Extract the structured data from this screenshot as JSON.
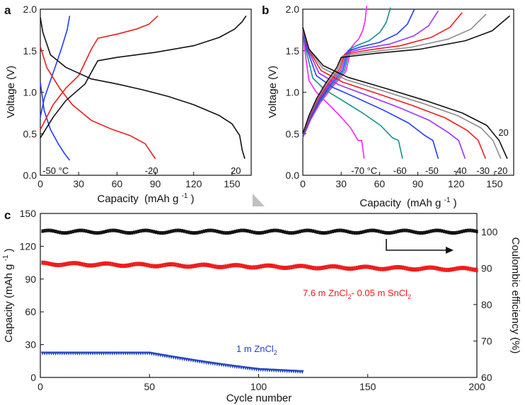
{
  "colors": {
    "axis": "#111111",
    "arrow": "#c0c0c0"
  },
  "chart_data": [
    {
      "panel": "a",
      "type": "line",
      "xlabel": "Capacity",
      "xlabel_unit": "(mAh g",
      "xlabel_sup": "-1",
      "xlabel_close": ")",
      "ylabel": "Voltage (V)",
      "xlim": [
        0,
        165
      ],
      "ylim": [
        0,
        2.0
      ],
      "xticks": [
        "0",
        "30",
        "60",
        "90",
        "120",
        "150"
      ],
      "yticks": [
        "0.0",
        "0.5",
        "1.0",
        "1.5",
        "2.0"
      ],
      "curves": [
        {
          "name": "-50 °C charge",
          "color": "#1e3cff",
          "points": [
            [
              0,
              0.7
            ],
            [
              3,
              0.92
            ],
            [
              7,
              1.1
            ],
            [
              12,
              1.32
            ],
            [
              17,
              1.55
            ],
            [
              21,
              1.75
            ],
            [
              23,
              1.92
            ]
          ]
        },
        {
          "name": "-50 °C discharge",
          "color": "#1e3cff",
          "points": [
            [
              0,
              1.12
            ],
            [
              3,
              0.78
            ],
            [
              8,
              0.55
            ],
            [
              14,
              0.38
            ],
            [
              19,
              0.26
            ],
            [
              23,
              0.18
            ]
          ]
        },
        {
          "name": "-20 charge",
          "color": "#ee1c1c",
          "points": [
            [
              0,
              0.55
            ],
            [
              10,
              0.85
            ],
            [
              20,
              1.05
            ],
            [
              30,
              1.2
            ],
            [
              40,
              1.52
            ],
            [
              45,
              1.65
            ],
            [
              60,
              1.7
            ],
            [
              75,
              1.76
            ],
            [
              85,
              1.82
            ],
            [
              92,
              1.92
            ]
          ]
        },
        {
          "name": "-20 discharge",
          "color": "#ee1c1c",
          "points": [
            [
              0,
              1.55
            ],
            [
              5,
              1.3
            ],
            [
              15,
              1.05
            ],
            [
              25,
              0.85
            ],
            [
              40,
              0.66
            ],
            [
              55,
              0.56
            ],
            [
              70,
              0.48
            ],
            [
              82,
              0.38
            ],
            [
              90,
              0.2
            ]
          ]
        },
        {
          "name": "20 charge",
          "color": "#111111",
          "points": [
            [
              0,
              0.45
            ],
            [
              10,
              0.7
            ],
            [
              20,
              0.9
            ],
            [
              35,
              1.1
            ],
            [
              42,
              1.3
            ],
            [
              45,
              1.38
            ],
            [
              60,
              1.42
            ],
            [
              90,
              1.48
            ],
            [
              120,
              1.56
            ],
            [
              140,
              1.66
            ],
            [
              152,
              1.76
            ],
            [
              158,
              1.85
            ],
            [
              161,
              1.92
            ]
          ]
        },
        {
          "name": "20 discharge",
          "color": "#111111",
          "points": [
            [
              0,
              1.9
            ],
            [
              2,
              1.72
            ],
            [
              8,
              1.45
            ],
            [
              20,
              1.3
            ],
            [
              40,
              1.16
            ],
            [
              60,
              1.1
            ],
            [
              80,
              1.03
            ],
            [
              100,
              0.95
            ],
            [
              120,
              0.85
            ],
            [
              140,
              0.72
            ],
            [
              150,
              0.62
            ],
            [
              156,
              0.48
            ],
            [
              158,
              0.3
            ],
            [
              160,
              0.2
            ]
          ]
        }
      ],
      "annotations": [
        {
          "text": "-50 °C",
          "x": 12,
          "y": 0.06,
          "color": "#111111"
        },
        {
          "text": "-20",
          "x": 87,
          "y": 0.06,
          "color": "#111111"
        },
        {
          "text": "20",
          "x": 153,
          "y": 0.06,
          "color": "#111111"
        }
      ]
    },
    {
      "panel": "b",
      "type": "line",
      "xlabel": "Capacity",
      "xlabel_unit": "(mAh g",
      "xlabel_sup": "-1",
      "xlabel_close": ")",
      "ylabel": "Voltage (V)",
      "xlim": [
        0,
        165
      ],
      "ylim": [
        0,
        2.0
      ],
      "xticks": [
        "0",
        "30",
        "60",
        "90",
        "120",
        "150"
      ],
      "yticks": [
        "0.0",
        "0.5",
        "1.0",
        "1.5",
        "2.0"
      ],
      "series": [
        {
          "name": "-70 °C",
          "color": "#ff22ff",
          "capacity": 48
        },
        {
          "name": "-60",
          "color": "#12908c",
          "capacity": 78
        },
        {
          "name": "-50",
          "color": "#1e3cff",
          "capacity": 106
        },
        {
          "name": "-40",
          "color": "#9b30ff",
          "capacity": 127
        },
        {
          "name": "-30",
          "color": "#ee1c1c",
          "capacity": 143
        },
        {
          "name": "-20",
          "color": "#8c8c8c",
          "capacity": 155
        },
        {
          "name": "20",
          "color": "#111111",
          "capacity": 160
        }
      ],
      "annotations": [
        {
          "text": "-70 °C",
          "x": 48,
          "y": 0.06,
          "color": "#111111"
        },
        {
          "text": "-60",
          "x": 76,
          "y": 0.06,
          "color": "#111111"
        },
        {
          "text": "-50",
          "x": 101,
          "y": 0.06,
          "color": "#111111"
        },
        {
          "text": "-40",
          "x": 123,
          "y": 0.06,
          "color": "#111111"
        },
        {
          "text": "-30",
          "x": 141,
          "y": 0.06,
          "color": "#111111"
        },
        {
          "text": "-20",
          "x": 155,
          "y": 0.06,
          "color": "#111111"
        },
        {
          "text": "20",
          "x": 157,
          "y": 0.52,
          "color": "#111111"
        }
      ]
    },
    {
      "panel": "c",
      "type": "scatter",
      "xlabel": "Cycle number",
      "ylabel": "Capacity (mAh g",
      "ylabel_sup": "-1",
      "ylabel_close": ")",
      "y2label": "Coulombic efficiency (%)",
      "xlim": [
        0,
        200
      ],
      "ylim": [
        0,
        150
      ],
      "y2lim": [
        60,
        105
      ],
      "xticks": [
        "0",
        "50",
        "100",
        "150",
        "200"
      ],
      "yticks": [
        "0",
        "30",
        "60",
        "90",
        "120",
        "150"
      ],
      "y2ticks": [
        "60",
        "70",
        "80",
        "90",
        "100"
      ],
      "series": [
        {
          "name": "Coulombic efficiency",
          "color": "#111111",
          "axis": "right",
          "cycles": 200,
          "value": 100
        },
        {
          "name": "7.6 m ZnCl2- 0.05 m SnCl2",
          "color": "#ee1c1c",
          "axis": "left",
          "cycles": 200,
          "start": 104,
          "end": 99
        },
        {
          "name": "1 m ZnCl2",
          "color": "#2244bb",
          "axis": "left",
          "cycles": 120,
          "start": 22,
          "end": 5
        }
      ],
      "annotations": [
        {
          "parts": [
            "7.6 m ZnCl",
            "2",
            "- 0.05 m SnCl",
            "2"
          ],
          "color": "#ee1c1c"
        },
        {
          "parts": [
            "1 m ZnCl",
            "2"
          ],
          "color": "#2244bb"
        }
      ]
    }
  ]
}
